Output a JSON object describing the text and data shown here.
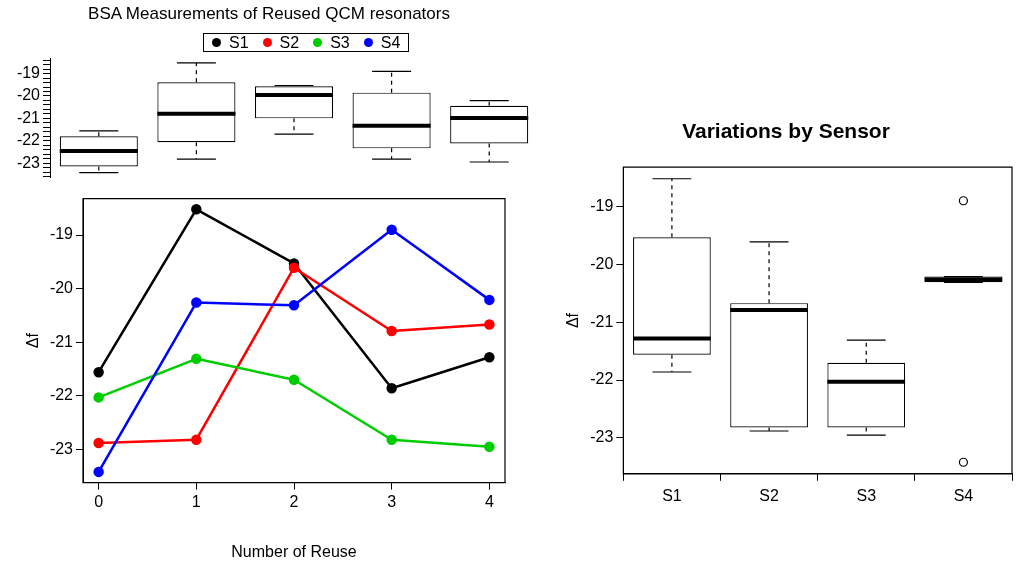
{
  "chart_data": [
    {
      "type": "box",
      "title": "BSA Measurements of Reused QCM resonators",
      "categories": [
        "0",
        "1",
        "2",
        "3",
        "4"
      ],
      "tick_labels": "y",
      "grid": false,
      "ylim": [
        -23.62,
        -18.32
      ],
      "yticks": [
        {
          "value": -23.6,
          "label": null
        },
        {
          "value": -23.4,
          "label": null
        },
        {
          "value": -23.2,
          "label": null
        },
        -23,
        {
          "value": -22.8,
          "label": null
        },
        {
          "value": -22.6,
          "label": null
        },
        {
          "value": -22.4,
          "label": null
        },
        {
          "value": -22.2,
          "label": null
        },
        -22,
        {
          "value": -21.8,
          "label": null
        },
        {
          "value": -21.6,
          "label": null
        },
        {
          "value": -21.4,
          "label": null
        },
        {
          "value": -21.2,
          "label": null
        },
        -21,
        {
          "value": -20.8,
          "label": null
        },
        {
          "value": -20.6,
          "label": null
        },
        {
          "value": -20.4,
          "label": null
        },
        {
          "value": -20.2,
          "label": null
        },
        -20,
        {
          "value": -19.8,
          "label": null
        },
        {
          "value": -19.6,
          "label": null
        },
        {
          "value": -19.4,
          "label": null
        },
        {
          "value": -19.2,
          "label": null
        },
        -19,
        {
          "value": -18.8,
          "label": null
        },
        {
          "value": -18.6,
          "label": null
        },
        {
          "value": -18.4,
          "label": null
        }
      ],
      "boxes": [
        {
          "low": -23.42,
          "q1": -23.15,
          "median": -22.46,
          "q3": -21.8,
          "high": -21.56
        },
        {
          "low": -22.82,
          "q1": -22.07,
          "median": -20.79,
          "q3": -19.39,
          "high": -18.52
        },
        {
          "low": -21.7,
          "q1": -21.0,
          "median": -19.96,
          "q3": -19.57,
          "high": -19.53
        },
        {
          "low": -22.82,
          "q1": -22.34,
          "median": -21.33,
          "q3": -19.85,
          "high": -18.9
        },
        {
          "low": -22.95,
          "q1": -22.12,
          "median": -20.98,
          "q3": -20.44,
          "high": -20.21
        }
      ]
    },
    {
      "type": "line",
      "x": [
        0,
        1,
        2,
        3,
        4
      ],
      "xlabel": "Number of Reuse",
      "ylabel": "Δf",
      "xlim": [
        -0.16,
        4.16
      ],
      "xticks": [
        0,
        1,
        2,
        3,
        4
      ],
      "ylim": [
        -23.62,
        -18.32
      ],
      "yticks": [
        -23,
        -22,
        -21,
        -20,
        -19
      ],
      "grid": false,
      "legend": "top",
      "marker": "circle",
      "line_style": "solid",
      "series": [
        {
          "name": "S1",
          "color": "#000000",
          "values": [
            -21.56,
            -18.52,
            -19.53,
            -21.86,
            -21.28
          ]
        },
        {
          "name": "S2",
          "color": "#ff0000",
          "values": [
            -22.88,
            -22.82,
            -19.61,
            -20.79,
            -20.67
          ]
        },
        {
          "name": "S3",
          "color": "#00cd00",
          "values": [
            -22.03,
            -21.31,
            -21.7,
            -22.82,
            -22.95
          ]
        },
        {
          "name": "S4",
          "color": "#0000ff",
          "values": [
            -23.42,
            -20.26,
            -20.31,
            -18.9,
            -20.21
          ]
        }
      ]
    },
    {
      "type": "box",
      "title": "Variations by Sensor",
      "ylabel": "Δf",
      "categories": [
        "S1",
        "S2",
        "S3",
        "S4"
      ],
      "grid": false,
      "ylim": [
        -23.62,
        -18.32
      ],
      "yticks": [
        -23,
        -22,
        -21,
        -20,
        -19
      ],
      "boxes": [
        {
          "low": -21.86,
          "q1": -21.56,
          "median": -21.28,
          "q3": -19.53,
          "high": -18.52
        },
        {
          "low": -22.88,
          "q1": -22.82,
          "median": -20.79,
          "q3": -20.67,
          "high": -19.61
        },
        {
          "low": -22.95,
          "q1": -22.82,
          "median": -22.03,
          "q3": -21.7,
          "high": -21.31
        },
        {
          "low": -20.31,
          "q1": -20.31,
          "median": -20.26,
          "q3": -20.21,
          "high": -20.21,
          "outliers": [
            -23.42,
            -18.9
          ]
        }
      ]
    }
  ]
}
